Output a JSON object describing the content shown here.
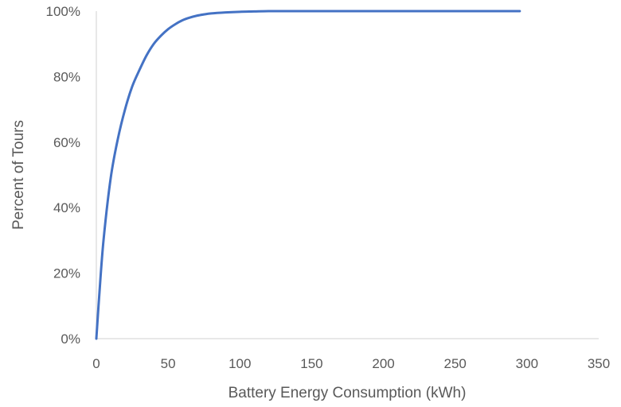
{
  "chart_data": {
    "type": "line",
    "title": "",
    "xlabel": "Battery Energy Consumption (kWh)",
    "ylabel": "Percent of Tours",
    "xlim": [
      0,
      350
    ],
    "ylim": [
      0,
      100
    ],
    "x_ticks": [
      "0",
      "50",
      "100",
      "150",
      "200",
      "250",
      "300",
      "350"
    ],
    "y_ticks": [
      "0%",
      "20%",
      "40%",
      "60%",
      "80%",
      "100%"
    ],
    "grid": false,
    "legend": "none",
    "series": [
      {
        "color": "#4472c4",
        "x": [
          0,
          2,
          5,
          10,
          15,
          20,
          25,
          30,
          35,
          40,
          45,
          50,
          55,
          60,
          65,
          70,
          75,
          80,
          90,
          100,
          110,
          120,
          130,
          150,
          200,
          250,
          295
        ],
        "y": [
          0,
          13,
          30,
          49,
          61,
          70,
          77,
          82,
          86.5,
          90,
          92.5,
          94.5,
          96,
          97.2,
          98,
          98.6,
          99,
          99.3,
          99.6,
          99.8,
          99.9,
          100,
          100,
          100,
          100,
          100,
          100
        ]
      }
    ]
  }
}
